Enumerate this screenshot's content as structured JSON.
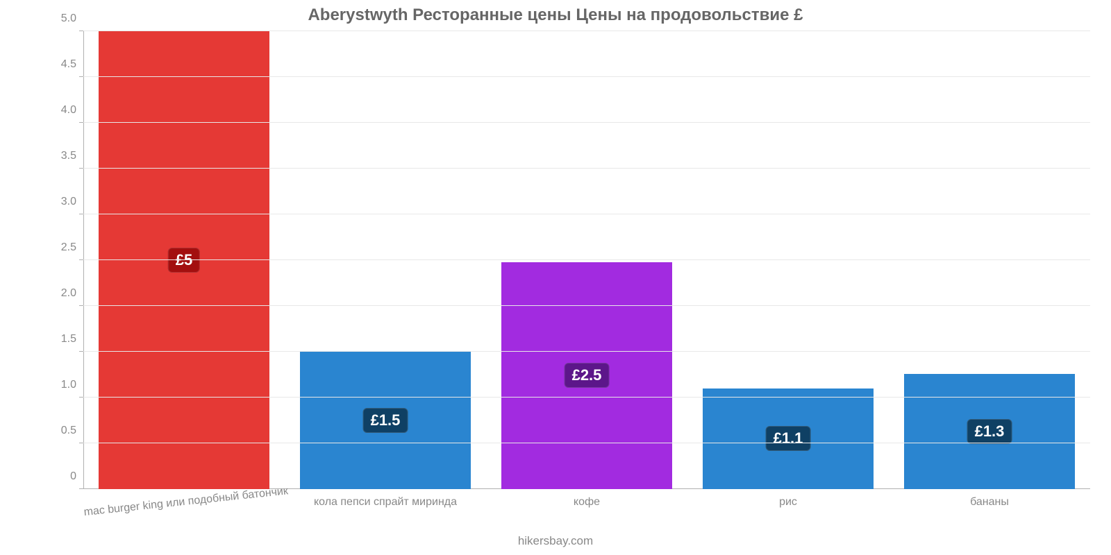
{
  "chart": {
    "type": "bar",
    "title": "Aberystwyth Ресторанные цены Цены на продовольствие £",
    "title_fontsize": 24,
    "title_color": "#666666",
    "attribution": "hikersbay.com",
    "attribution_fontsize": 17,
    "attribution_color": "#888888",
    "background_color": "#ffffff",
    "grid_color": "#e8e8e8",
    "axis_color": "#b0b0b0",
    "tick_font_color": "#888888",
    "tick_fontsize": 16,
    "x_label_fontsize": 16,
    "x_label_rotate_first": -6,
    "bar_width_pct": 85,
    "ylim": [
      0,
      5.0
    ],
    "yticks": [
      {
        "pos": 0,
        "label": "0"
      },
      {
        "pos": 0.5,
        "label": "0.5"
      },
      {
        "pos": 1.0,
        "label": "1.0"
      },
      {
        "pos": 1.5,
        "label": "1.5"
      },
      {
        "pos": 2.0,
        "label": "2.0"
      },
      {
        "pos": 2.5,
        "label": "2.5"
      },
      {
        "pos": 3.0,
        "label": "3.0"
      },
      {
        "pos": 3.5,
        "label": "3.5"
      },
      {
        "pos": 4.0,
        "label": "4.0"
      },
      {
        "pos": 4.5,
        "label": "4.5"
      },
      {
        "pos": 5.0,
        "label": "5.0"
      }
    ],
    "value_label_fontsize": 22,
    "items": [
      {
        "category": "mac burger king или подобный батончик",
        "value": 5.0,
        "value_label": "£5",
        "bar_color": "#e53935",
        "badge_bg": "#a30f0f",
        "label_rotate": true
      },
      {
        "category": "кола пепси спрайт миринда",
        "value": 1.5,
        "value_label": "£1.5",
        "bar_color": "#2a85d0",
        "badge_bg": "#0f4064",
        "label_rotate": false
      },
      {
        "category": "кофе",
        "value": 2.48,
        "value_label": "£2.5",
        "bar_color": "#a22be0",
        "badge_bg": "#5c168a",
        "label_rotate": false
      },
      {
        "category": "рис",
        "value": 1.1,
        "value_label": "£1.1",
        "bar_color": "#2a85d0",
        "badge_bg": "#0f4064",
        "label_rotate": false
      },
      {
        "category": "бананы",
        "value": 1.26,
        "value_label": "£1.3",
        "bar_color": "#2a85d0",
        "badge_bg": "#0f4064",
        "label_rotate": false
      }
    ]
  }
}
